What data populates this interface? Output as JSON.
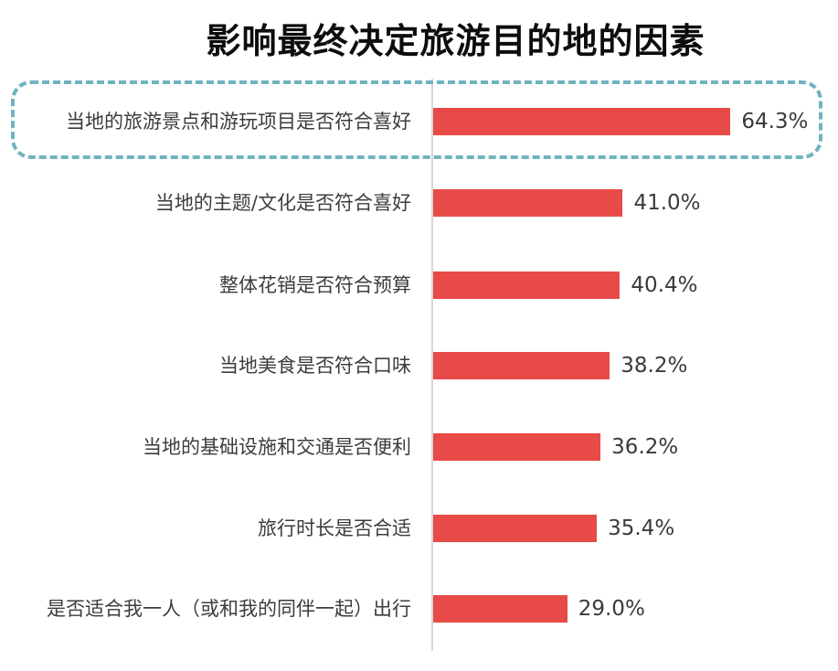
{
  "chart_data": {
    "type": "bar",
    "orientation": "horizontal",
    "title": "影响最终决定旅游目的地的因素",
    "xlabel": "",
    "ylabel": "",
    "xlim": [
      0,
      70
    ],
    "grid": false,
    "legend": null,
    "categories": [
      "当地的旅游景点和游玩项目是否符合喜好",
      "当地的主题/文化是否符合喜好",
      "整体花销是否符合预算",
      "当地美食是否符合口味",
      "当地的基础设施和交通是否便利",
      "旅行时长是否合适",
      "是否适合我一人（或和我的同伴一起）出行"
    ],
    "values": [
      64.3,
      41.0,
      40.4,
      38.2,
      36.2,
      35.4,
      29.0
    ],
    "value_labels": [
      "64.3%",
      "41.0%",
      "40.4%",
      "38.2%",
      "36.2%",
      "35.4%",
      "29.0%"
    ],
    "unit": "%",
    "annotations": [
      {
        "type": "dashed-highlight-box",
        "target_index": 0,
        "color": "#6fb3bf"
      }
    ],
    "colors": {
      "bar": "#e84b47",
      "axis": "#d8d8d8",
      "highlight": "#6fb3bf"
    }
  }
}
